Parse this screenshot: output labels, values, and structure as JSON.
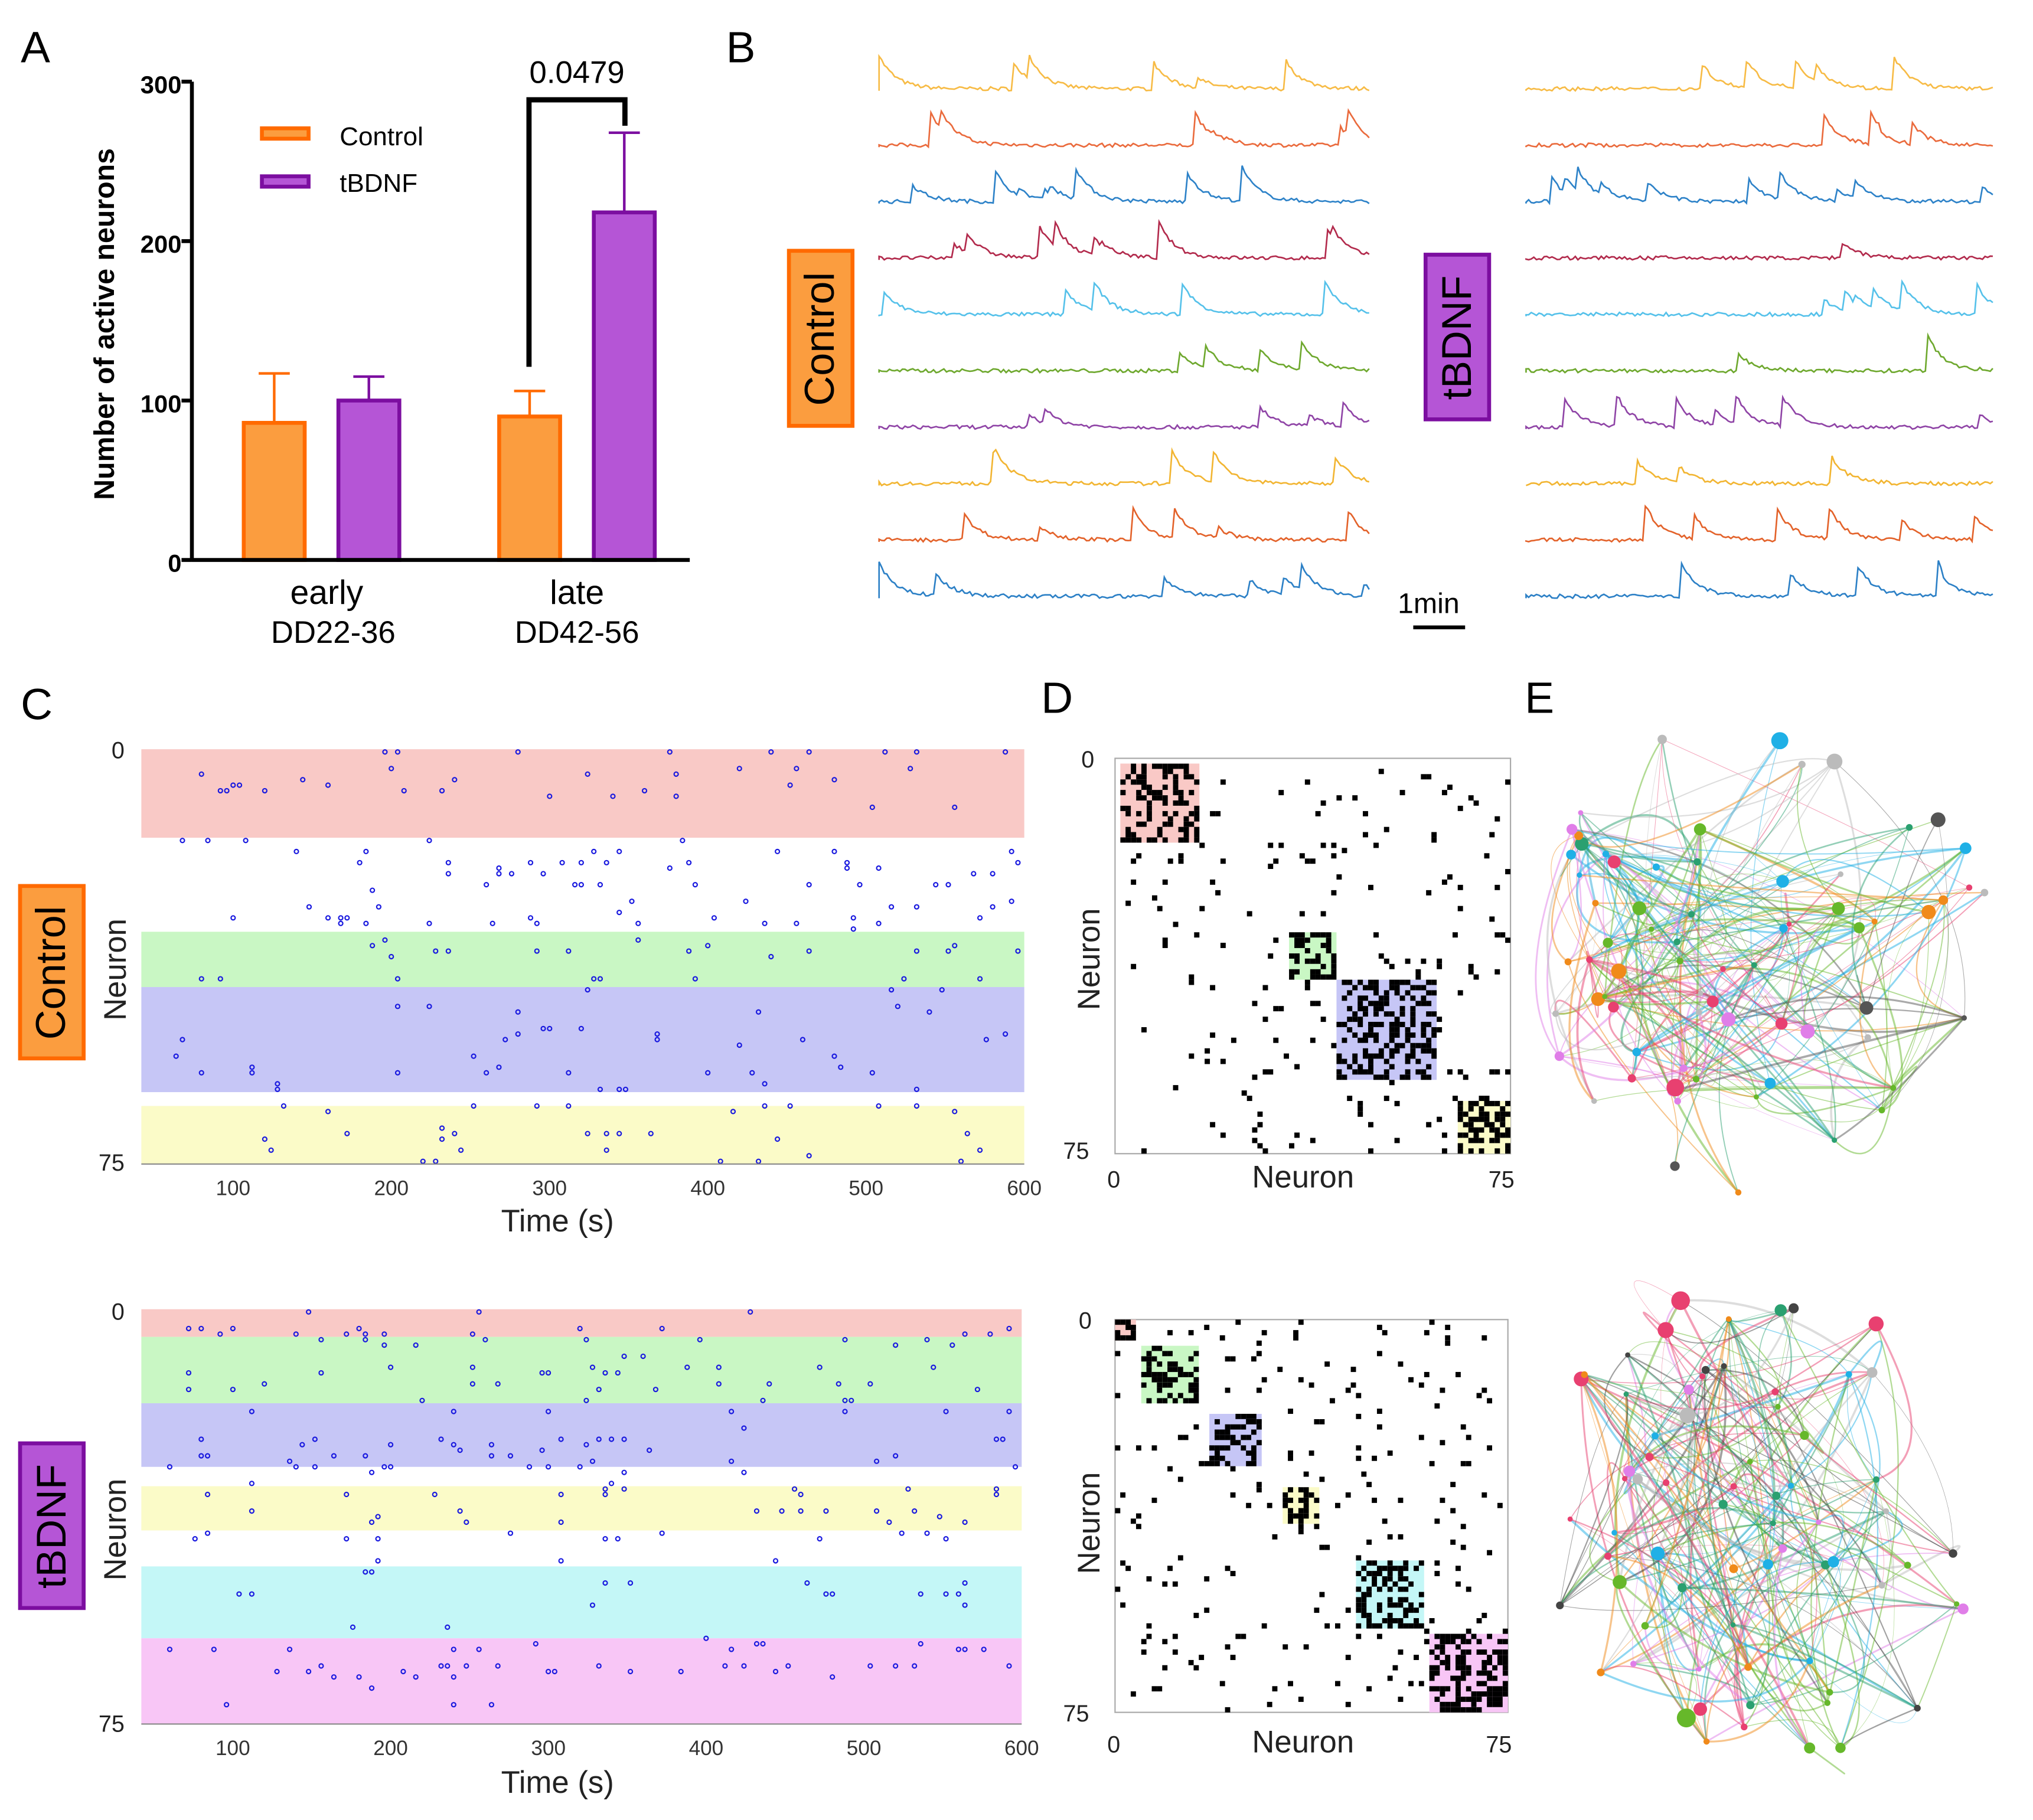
{
  "panel_letters": {
    "a": "A",
    "b": "B",
    "c": "C",
    "d": "D",
    "e": "E"
  },
  "colors": {
    "control": "#fb9d3f",
    "control_edge": "#ff6a00",
    "tbdnf": "#b555d6",
    "tbdnf_edge": "#7c0ea0",
    "raster_dot": "#1a1adf"
  },
  "chart_data": [
    {
      "panel": "A",
      "type": "bar",
      "ylabel": "Number of active neurons",
      "ylim": [
        0,
        300
      ],
      "yticks": [
        "0",
        "100",
        "200",
        "300"
      ],
      "categories": [
        {
          "top": "early",
          "bottom": "DD22-36"
        },
        {
          "top": "late",
          "bottom": "DD42-56"
        }
      ],
      "series": [
        {
          "name": "Control",
          "values": [
            86,
            90
          ],
          "error_upper": [
            117,
            106
          ]
        },
        {
          "name": "tBDNF",
          "values": [
            100,
            218
          ],
          "error_upper": [
            115,
            268
          ]
        }
      ],
      "legend": "top-left",
      "annotation": {
        "text": "0.0479",
        "between": "late Control vs late tBDNF"
      }
    },
    {
      "panel": "B",
      "type": "line",
      "groups": [
        {
          "label": "Control",
          "trace_colors": [
            "#f7bb45",
            "#ea6a3c",
            "#2d82c8",
            "#b22a4c",
            "#55c1ea",
            "#6ea82e",
            "#8f44a6",
            "#f2b532",
            "#e3622a",
            "#2c80c6"
          ]
        },
        {
          "label": "tBDNF",
          "trace_colors": [
            "#f7bb45",
            "#ea6a3c",
            "#2d82c8",
            "#b22a4c",
            "#55c1ea",
            "#6ea82e",
            "#8f44a6",
            "#f2b532",
            "#e3622a",
            "#2c80c6"
          ]
        }
      ],
      "scale_bar": "1min"
    },
    {
      "panel": "C",
      "type": "scatter",
      "group": "Control",
      "xlabel": "Time (s)",
      "ylabel": "Neuron",
      "xticks": [
        100,
        200,
        300,
        400,
        500,
        600
      ],
      "xlim": [
        42,
        600
      ],
      "ylim": [
        0,
        75
      ],
      "yticks": [
        "0",
        "75"
      ],
      "clusters": [
        {
          "from": 0,
          "to": 16,
          "color": "#f9c9c6"
        },
        {
          "from": 33,
          "to": 43,
          "color": "#c9f7c4"
        },
        {
          "from": 43,
          "to": 62,
          "color": "#c6c6f6"
        },
        {
          "from": 64.5,
          "to": 75,
          "color": "#fbfbc8"
        }
      ]
    },
    {
      "panel": "C",
      "type": "scatter",
      "group": "tBDNF",
      "xlabel": "Time (s)",
      "ylabel": "Neuron",
      "xticks": [
        100,
        200,
        300,
        400,
        500,
        600
      ],
      "xlim": [
        42,
        600
      ],
      "ylim": [
        0,
        75
      ],
      "yticks": [
        "0",
        "75"
      ],
      "clusters": [
        {
          "from": 0,
          "to": 5,
          "color": "#f9c9c6"
        },
        {
          "from": 5,
          "to": 17,
          "color": "#c9f7c4"
        },
        {
          "from": 17,
          "to": 28.5,
          "color": "#c6c6f6"
        },
        {
          "from": 32,
          "to": 40,
          "color": "#fbfbc8"
        },
        {
          "from": 46.5,
          "to": 59.5,
          "color": "#c4f7f7"
        },
        {
          "from": 59.5,
          "to": 75,
          "color": "#f8c6f6"
        }
      ]
    },
    {
      "panel": "D",
      "type": "heatmap",
      "group": "Control",
      "xlabel": "Neuron",
      "ylabel": "Neuron",
      "xticks": [
        "0",
        "75"
      ],
      "yticks": [
        "0",
        "75"
      ],
      "clusters": [
        {
          "from": 1,
          "to": 16,
          "color": "#f9c9c6"
        },
        {
          "from": 33,
          "to": 42,
          "color": "#c9f7c4"
        },
        {
          "from": 42,
          "to": 61,
          "color": "#c6c6f6"
        },
        {
          "from": 65,
          "to": 75,
          "color": "#fbfbc8"
        }
      ]
    },
    {
      "panel": "D",
      "type": "heatmap",
      "group": "tBDNF",
      "xlabel": "Neuron",
      "ylabel": "Neuron",
      "xticks": [
        "0",
        "75"
      ],
      "yticks": [
        "0",
        "75"
      ],
      "clusters": [
        {
          "from": 0,
          "to": 4,
          "color": "#f9c9c6"
        },
        {
          "from": 5,
          "to": 16,
          "color": "#c9f7c4"
        },
        {
          "from": 18,
          "to": 28,
          "color": "#c6c6f6"
        },
        {
          "from": 32,
          "to": 39,
          "color": "#fbfbc8"
        },
        {
          "from": 46,
          "to": 59,
          "color": "#c4f7f7"
        },
        {
          "from": 60,
          "to": 75,
          "color": "#f8c6f6"
        }
      ]
    },
    {
      "panel": "E",
      "type": "network",
      "groups": [
        {
          "group": "Control",
          "node_colors": [
            "#1fb0e6",
            "#e07ee8",
            "#66b82a",
            "#f08a1a",
            "#555555",
            "#bbbbbb",
            "#e84070",
            "#2aa070"
          ]
        },
        {
          "group": "tBDNF",
          "node_colors": [
            "#e07ee8",
            "#444444",
            "#1fb0e6",
            "#f08a1a",
            "#66b82a",
            "#e84070",
            "#2aa070",
            "#bbbbbb"
          ]
        }
      ]
    }
  ]
}
